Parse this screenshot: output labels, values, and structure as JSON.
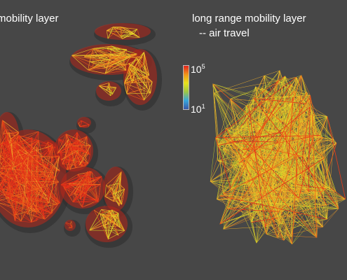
{
  "panels": {
    "left": {
      "title": "mobility layer"
    },
    "right": {
      "title": "long range mobility layer",
      "subtitle": "-- air travel"
    }
  },
  "colorbar": {
    "max_base": "10",
    "max_exp": "5",
    "min_base": "10",
    "min_exp": "1",
    "colors": [
      "#e3231e",
      "#f0961b",
      "#e8e21d",
      "#9ec645",
      "#37a7de",
      "#3a57a8"
    ]
  },
  "edge_colors": [
    "#e4301a",
    "#ea5a18",
    "#f08a22",
    "#f6b52a",
    "#eedd2a",
    "#c9d52a"
  ]
}
